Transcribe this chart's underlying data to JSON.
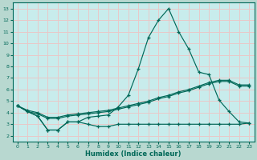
{
  "xlabel": "Humidex (Indice chaleur)",
  "xlim": [
    -0.5,
    23.5
  ],
  "ylim": [
    1.5,
    13.5
  ],
  "yticks": [
    2,
    3,
    4,
    5,
    6,
    7,
    8,
    9,
    10,
    11,
    12,
    13
  ],
  "xticks": [
    0,
    1,
    2,
    3,
    4,
    5,
    6,
    7,
    8,
    9,
    10,
    11,
    12,
    13,
    14,
    15,
    16,
    17,
    18,
    19,
    20,
    21,
    22,
    23
  ],
  "outer_bg": "#b8d8d0",
  "plot_bg": "#c8ecec",
  "grid_color": "#e8c8c8",
  "line_color": "#006858",
  "lines": [
    {
      "x": [
        0,
        1,
        2,
        3,
        4,
        5,
        6,
        7,
        8,
        9,
        10,
        11,
        12,
        13,
        14,
        15,
        16,
        17,
        18,
        19,
        20,
        21,
        22,
        23
      ],
      "y": [
        4.6,
        4.1,
        3.7,
        2.5,
        2.5,
        3.2,
        3.2,
        3.0,
        2.8,
        2.8,
        3.0,
        3.0,
        3.0,
        3.0,
        3.0,
        3.0,
        3.0,
        3.0,
        3.0,
        3.0,
        3.0,
        3.0,
        3.0,
        3.1
      ]
    },
    {
      "x": [
        0,
        1,
        2,
        3,
        4,
        5,
        6,
        7,
        8,
        9,
        10,
        11,
        12,
        13,
        14,
        15,
        16,
        17,
        18,
        19,
        20,
        21,
        22,
        23
      ],
      "y": [
        4.6,
        4.1,
        3.7,
        2.5,
        2.5,
        3.2,
        3.2,
        3.6,
        3.7,
        3.8,
        4.5,
        5.5,
        7.8,
        10.5,
        12.0,
        13.0,
        11.0,
        9.5,
        7.5,
        7.3,
        5.1,
        4.1,
        3.2,
        3.1
      ]
    },
    {
      "x": [
        0,
        1,
        2,
        3,
        4,
        5,
        6,
        7,
        8,
        9,
        10,
        11,
        12,
        13,
        14,
        15,
        16,
        17,
        18,
        19,
        20,
        21,
        22,
        23
      ],
      "y": [
        4.6,
        4.2,
        4.0,
        3.6,
        3.6,
        3.8,
        3.9,
        4.0,
        4.1,
        4.2,
        4.4,
        4.6,
        4.8,
        5.0,
        5.3,
        5.5,
        5.8,
        6.0,
        6.3,
        6.6,
        6.8,
        6.8,
        6.4,
        6.4
      ]
    },
    {
      "x": [
        0,
        1,
        2,
        3,
        4,
        5,
        6,
        7,
        8,
        9,
        10,
        11,
        12,
        13,
        14,
        15,
        16,
        17,
        18,
        19,
        20,
        21,
        22,
        23
      ],
      "y": [
        4.6,
        4.1,
        3.9,
        3.5,
        3.5,
        3.7,
        3.8,
        3.9,
        4.0,
        4.1,
        4.3,
        4.5,
        4.7,
        4.9,
        5.2,
        5.4,
        5.7,
        5.9,
        6.2,
        6.5,
        6.7,
        6.7,
        6.3,
        6.3
      ]
    }
  ]
}
